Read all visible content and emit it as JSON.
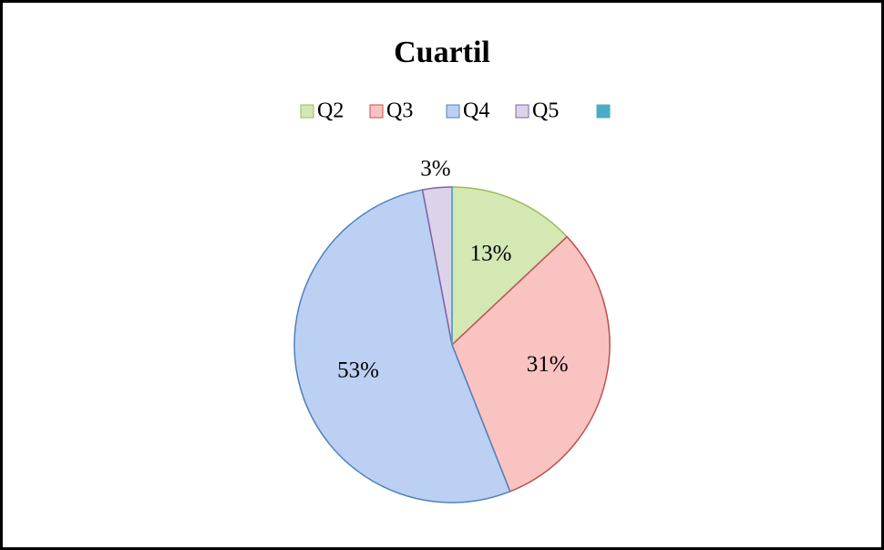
{
  "chart_data": {
    "type": "pie",
    "title": "Cuartil",
    "categories": [
      "Q2",
      "Q3",
      "Q4",
      "Q5",
      null
    ],
    "values": [
      13,
      31,
      53,
      3,
      0
    ],
    "value_labels": [
      "13%",
      "31%",
      "53%",
      "3%",
      null
    ],
    "colors": [
      "#d4e8b4",
      "#f9c3c2",
      "#bcd0f4",
      "#dcd3ea",
      "#4bacc6"
    ],
    "border_colors": [
      "#9bbb59",
      "#c0504d",
      "#4f81bd",
      "#8064a2",
      "#4bacc6"
    ],
    "legend": "top"
  }
}
